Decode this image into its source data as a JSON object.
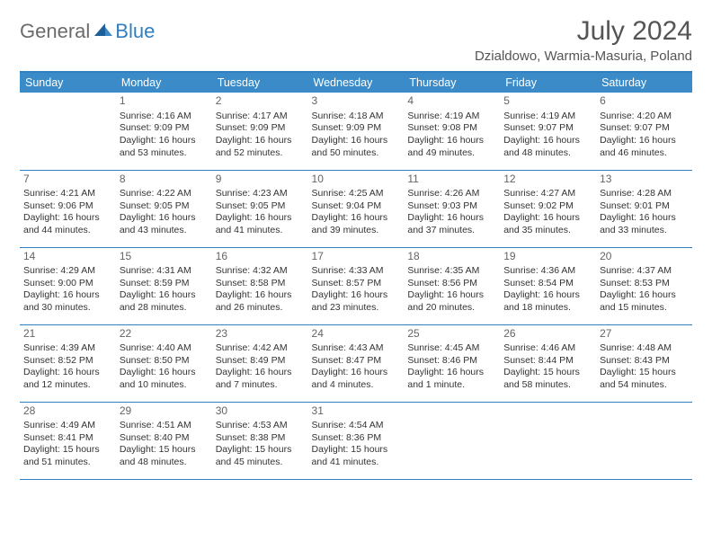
{
  "logo": {
    "part1": "General",
    "part2": "Blue"
  },
  "title": "July 2024",
  "location": "Dzialdowo, Warmia-Masuria, Poland",
  "header_bg": "#3b8bc9",
  "accent_color": "#2f7fc1",
  "day_headers": [
    "Sunday",
    "Monday",
    "Tuesday",
    "Wednesday",
    "Thursday",
    "Friday",
    "Saturday"
  ],
  "weeks": [
    [
      null,
      {
        "n": "1",
        "sr": "Sunrise: 4:16 AM",
        "ss": "Sunset: 9:09 PM",
        "d1": "Daylight: 16 hours",
        "d2": "and 53 minutes."
      },
      {
        "n": "2",
        "sr": "Sunrise: 4:17 AM",
        "ss": "Sunset: 9:09 PM",
        "d1": "Daylight: 16 hours",
        "d2": "and 52 minutes."
      },
      {
        "n": "3",
        "sr": "Sunrise: 4:18 AM",
        "ss": "Sunset: 9:09 PM",
        "d1": "Daylight: 16 hours",
        "d2": "and 50 minutes."
      },
      {
        "n": "4",
        "sr": "Sunrise: 4:19 AM",
        "ss": "Sunset: 9:08 PM",
        "d1": "Daylight: 16 hours",
        "d2": "and 49 minutes."
      },
      {
        "n": "5",
        "sr": "Sunrise: 4:19 AM",
        "ss": "Sunset: 9:07 PM",
        "d1": "Daylight: 16 hours",
        "d2": "and 48 minutes."
      },
      {
        "n": "6",
        "sr": "Sunrise: 4:20 AM",
        "ss": "Sunset: 9:07 PM",
        "d1": "Daylight: 16 hours",
        "d2": "and 46 minutes."
      }
    ],
    [
      {
        "n": "7",
        "sr": "Sunrise: 4:21 AM",
        "ss": "Sunset: 9:06 PM",
        "d1": "Daylight: 16 hours",
        "d2": "and 44 minutes."
      },
      {
        "n": "8",
        "sr": "Sunrise: 4:22 AM",
        "ss": "Sunset: 9:05 PM",
        "d1": "Daylight: 16 hours",
        "d2": "and 43 minutes."
      },
      {
        "n": "9",
        "sr": "Sunrise: 4:23 AM",
        "ss": "Sunset: 9:05 PM",
        "d1": "Daylight: 16 hours",
        "d2": "and 41 minutes."
      },
      {
        "n": "10",
        "sr": "Sunrise: 4:25 AM",
        "ss": "Sunset: 9:04 PM",
        "d1": "Daylight: 16 hours",
        "d2": "and 39 minutes."
      },
      {
        "n": "11",
        "sr": "Sunrise: 4:26 AM",
        "ss": "Sunset: 9:03 PM",
        "d1": "Daylight: 16 hours",
        "d2": "and 37 minutes."
      },
      {
        "n": "12",
        "sr": "Sunrise: 4:27 AM",
        "ss": "Sunset: 9:02 PM",
        "d1": "Daylight: 16 hours",
        "d2": "and 35 minutes."
      },
      {
        "n": "13",
        "sr": "Sunrise: 4:28 AM",
        "ss": "Sunset: 9:01 PM",
        "d1": "Daylight: 16 hours",
        "d2": "and 33 minutes."
      }
    ],
    [
      {
        "n": "14",
        "sr": "Sunrise: 4:29 AM",
        "ss": "Sunset: 9:00 PM",
        "d1": "Daylight: 16 hours",
        "d2": "and 30 minutes."
      },
      {
        "n": "15",
        "sr": "Sunrise: 4:31 AM",
        "ss": "Sunset: 8:59 PM",
        "d1": "Daylight: 16 hours",
        "d2": "and 28 minutes."
      },
      {
        "n": "16",
        "sr": "Sunrise: 4:32 AM",
        "ss": "Sunset: 8:58 PM",
        "d1": "Daylight: 16 hours",
        "d2": "and 26 minutes."
      },
      {
        "n": "17",
        "sr": "Sunrise: 4:33 AM",
        "ss": "Sunset: 8:57 PM",
        "d1": "Daylight: 16 hours",
        "d2": "and 23 minutes."
      },
      {
        "n": "18",
        "sr": "Sunrise: 4:35 AM",
        "ss": "Sunset: 8:56 PM",
        "d1": "Daylight: 16 hours",
        "d2": "and 20 minutes."
      },
      {
        "n": "19",
        "sr": "Sunrise: 4:36 AM",
        "ss": "Sunset: 8:54 PM",
        "d1": "Daylight: 16 hours",
        "d2": "and 18 minutes."
      },
      {
        "n": "20",
        "sr": "Sunrise: 4:37 AM",
        "ss": "Sunset: 8:53 PM",
        "d1": "Daylight: 16 hours",
        "d2": "and 15 minutes."
      }
    ],
    [
      {
        "n": "21",
        "sr": "Sunrise: 4:39 AM",
        "ss": "Sunset: 8:52 PM",
        "d1": "Daylight: 16 hours",
        "d2": "and 12 minutes."
      },
      {
        "n": "22",
        "sr": "Sunrise: 4:40 AM",
        "ss": "Sunset: 8:50 PM",
        "d1": "Daylight: 16 hours",
        "d2": "and 10 minutes."
      },
      {
        "n": "23",
        "sr": "Sunrise: 4:42 AM",
        "ss": "Sunset: 8:49 PM",
        "d1": "Daylight: 16 hours",
        "d2": "and 7 minutes."
      },
      {
        "n": "24",
        "sr": "Sunrise: 4:43 AM",
        "ss": "Sunset: 8:47 PM",
        "d1": "Daylight: 16 hours",
        "d2": "and 4 minutes."
      },
      {
        "n": "25",
        "sr": "Sunrise: 4:45 AM",
        "ss": "Sunset: 8:46 PM",
        "d1": "Daylight: 16 hours",
        "d2": "and 1 minute."
      },
      {
        "n": "26",
        "sr": "Sunrise: 4:46 AM",
        "ss": "Sunset: 8:44 PM",
        "d1": "Daylight: 15 hours",
        "d2": "and 58 minutes."
      },
      {
        "n": "27",
        "sr": "Sunrise: 4:48 AM",
        "ss": "Sunset: 8:43 PM",
        "d1": "Daylight: 15 hours",
        "d2": "and 54 minutes."
      }
    ],
    [
      {
        "n": "28",
        "sr": "Sunrise: 4:49 AM",
        "ss": "Sunset: 8:41 PM",
        "d1": "Daylight: 15 hours",
        "d2": "and 51 minutes."
      },
      {
        "n": "29",
        "sr": "Sunrise: 4:51 AM",
        "ss": "Sunset: 8:40 PM",
        "d1": "Daylight: 15 hours",
        "d2": "and 48 minutes."
      },
      {
        "n": "30",
        "sr": "Sunrise: 4:53 AM",
        "ss": "Sunset: 8:38 PM",
        "d1": "Daylight: 15 hours",
        "d2": "and 45 minutes."
      },
      {
        "n": "31",
        "sr": "Sunrise: 4:54 AM",
        "ss": "Sunset: 8:36 PM",
        "d1": "Daylight: 15 hours",
        "d2": "and 41 minutes."
      },
      null,
      null,
      null
    ]
  ]
}
